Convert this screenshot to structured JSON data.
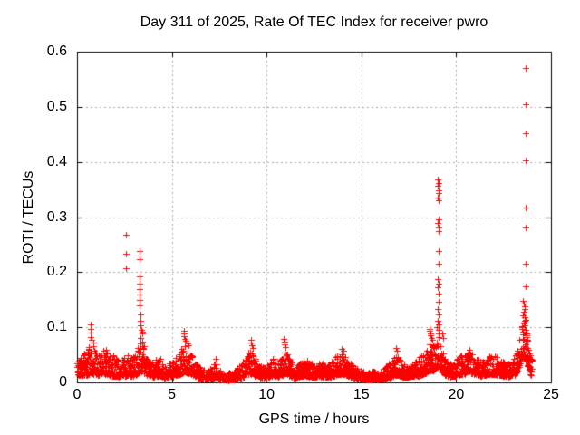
{
  "chart_data": {
    "type": "scatter",
    "title": "Day 311 of 2025, Rate Of TEC Index for receiver pwro",
    "xlabel": "GPS time / hours",
    "ylabel": "ROTI / TECUs",
    "series_name": "ROTI",
    "xlim": [
      0,
      25
    ],
    "ylim": [
      0,
      0.6
    ],
    "xticks": [
      0,
      5,
      10,
      15,
      20,
      25
    ],
    "xtick_labels": [
      "0",
      "5",
      "10",
      "15",
      "20",
      "25"
    ],
    "yticks": [
      0,
      0.1,
      0.2,
      0.3,
      0.4,
      0.5,
      0.6
    ],
    "ytick_labels": [
      "0",
      "0.1",
      "0.2",
      "0.3",
      "0.4",
      "0.5",
      "0.6"
    ],
    "grid": "dashed, at every major tick",
    "legend_position": "none",
    "marker": "plus",
    "marker_color": "#ff0000",
    "grid_color": "#aaaaaa",
    "axis_color": "#000000",
    "background_color": "#ffffff",
    "approx_points_total": 2640,
    "seed": 1311,
    "baseline_envelope_t_lo_hi": [
      [
        0.0,
        0.015,
        0.045
      ],
      [
        0.25,
        0.012,
        0.05
      ],
      [
        0.5,
        0.013,
        0.058
      ],
      [
        0.7,
        0.015,
        0.068
      ],
      [
        0.9,
        0.015,
        0.06
      ],
      [
        1.1,
        0.013,
        0.05
      ],
      [
        1.3,
        0.015,
        0.058
      ],
      [
        1.5,
        0.015,
        0.062
      ],
      [
        1.7,
        0.012,
        0.048
      ],
      [
        1.9,
        0.012,
        0.052
      ],
      [
        2.1,
        0.011,
        0.055
      ],
      [
        2.3,
        0.01,
        0.042
      ],
      [
        2.5,
        0.012,
        0.045
      ],
      [
        2.7,
        0.012,
        0.05
      ],
      [
        2.9,
        0.011,
        0.045
      ],
      [
        3.1,
        0.012,
        0.05
      ],
      [
        3.3,
        0.018,
        0.08
      ],
      [
        3.45,
        0.02,
        0.09
      ],
      [
        3.6,
        0.014,
        0.05
      ],
      [
        3.8,
        0.011,
        0.04
      ],
      [
        4.0,
        0.01,
        0.038
      ],
      [
        4.2,
        0.011,
        0.042
      ],
      [
        4.4,
        0.012,
        0.045
      ],
      [
        4.6,
        0.008,
        0.028
      ],
      [
        4.8,
        0.009,
        0.032
      ],
      [
        5.0,
        0.01,
        0.038
      ],
      [
        5.2,
        0.012,
        0.048
      ],
      [
        5.4,
        0.014,
        0.055
      ],
      [
        5.6,
        0.018,
        0.07
      ],
      [
        5.75,
        0.018,
        0.065
      ],
      [
        5.95,
        0.015,
        0.058
      ],
      [
        6.1,
        0.013,
        0.05
      ],
      [
        6.3,
        0.01,
        0.038
      ],
      [
        6.5,
        0.007,
        0.026
      ],
      [
        6.7,
        0.006,
        0.024
      ],
      [
        6.9,
        0.006,
        0.024
      ],
      [
        7.1,
        0.007,
        0.03
      ],
      [
        7.3,
        0.008,
        0.038
      ],
      [
        7.5,
        0.005,
        0.022
      ],
      [
        7.7,
        0.004,
        0.019
      ],
      [
        7.9,
        0.004,
        0.017
      ],
      [
        8.1,
        0.004,
        0.018
      ],
      [
        8.3,
        0.005,
        0.022
      ],
      [
        8.5,
        0.006,
        0.028
      ],
      [
        8.7,
        0.009,
        0.036
      ],
      [
        8.9,
        0.013,
        0.048
      ],
      [
        9.1,
        0.016,
        0.06
      ],
      [
        9.25,
        0.015,
        0.055
      ],
      [
        9.4,
        0.012,
        0.042
      ],
      [
        9.6,
        0.009,
        0.032
      ],
      [
        9.8,
        0.008,
        0.028
      ],
      [
        10.0,
        0.008,
        0.03
      ],
      [
        10.2,
        0.011,
        0.042
      ],
      [
        10.4,
        0.012,
        0.046
      ],
      [
        10.6,
        0.01,
        0.036
      ],
      [
        10.8,
        0.012,
        0.045
      ],
      [
        10.95,
        0.015,
        0.06
      ],
      [
        11.1,
        0.014,
        0.052
      ],
      [
        11.3,
        0.01,
        0.038
      ],
      [
        11.5,
        0.008,
        0.03
      ],
      [
        11.7,
        0.009,
        0.033
      ],
      [
        11.9,
        0.011,
        0.04
      ],
      [
        12.1,
        0.011,
        0.042
      ],
      [
        12.3,
        0.01,
        0.036
      ],
      [
        12.5,
        0.009,
        0.033
      ],
      [
        12.7,
        0.011,
        0.04
      ],
      [
        12.9,
        0.01,
        0.036
      ],
      [
        13.1,
        0.009,
        0.033
      ],
      [
        13.3,
        0.01,
        0.036
      ],
      [
        13.5,
        0.011,
        0.04
      ],
      [
        13.7,
        0.013,
        0.048
      ],
      [
        13.9,
        0.015,
        0.055
      ],
      [
        14.05,
        0.014,
        0.052
      ],
      [
        14.2,
        0.013,
        0.046
      ],
      [
        14.4,
        0.01,
        0.036
      ],
      [
        14.6,
        0.008,
        0.03
      ],
      [
        14.8,
        0.007,
        0.026
      ],
      [
        15.0,
        0.006,
        0.023
      ],
      [
        15.2,
        0.005,
        0.021
      ],
      [
        15.4,
        0.005,
        0.02
      ],
      [
        15.6,
        0.005,
        0.02
      ],
      [
        15.8,
        0.005,
        0.021
      ],
      [
        16.0,
        0.006,
        0.023
      ],
      [
        16.2,
        0.007,
        0.027
      ],
      [
        16.4,
        0.008,
        0.032
      ],
      [
        16.6,
        0.01,
        0.04
      ],
      [
        16.8,
        0.013,
        0.052
      ],
      [
        17.0,
        0.012,
        0.046
      ],
      [
        17.2,
        0.009,
        0.034
      ],
      [
        17.4,
        0.009,
        0.033
      ],
      [
        17.6,
        0.01,
        0.037
      ],
      [
        17.8,
        0.011,
        0.04
      ],
      [
        18.0,
        0.012,
        0.044
      ],
      [
        18.2,
        0.014,
        0.05
      ],
      [
        18.4,
        0.017,
        0.06
      ],
      [
        18.6,
        0.022,
        0.08
      ],
      [
        18.75,
        0.02,
        0.07
      ],
      [
        18.9,
        0.025,
        0.08
      ],
      [
        19.05,
        0.03,
        0.09
      ],
      [
        19.2,
        0.02,
        0.065
      ],
      [
        19.35,
        0.014,
        0.048
      ],
      [
        19.5,
        0.012,
        0.04
      ],
      [
        19.7,
        0.01,
        0.035
      ],
      [
        19.9,
        0.011,
        0.038
      ],
      [
        20.1,
        0.013,
        0.045
      ],
      [
        20.3,
        0.015,
        0.052
      ],
      [
        20.5,
        0.015,
        0.055
      ],
      [
        20.7,
        0.017,
        0.06
      ],
      [
        20.9,
        0.015,
        0.05
      ],
      [
        21.1,
        0.013,
        0.044
      ],
      [
        21.3,
        0.012,
        0.04
      ],
      [
        21.5,
        0.013,
        0.043
      ],
      [
        21.7,
        0.015,
        0.048
      ],
      [
        21.9,
        0.015,
        0.05
      ],
      [
        22.1,
        0.014,
        0.048
      ],
      [
        22.3,
        0.013,
        0.043
      ],
      [
        22.5,
        0.012,
        0.04
      ],
      [
        22.7,
        0.01,
        0.036
      ],
      [
        22.9,
        0.011,
        0.038
      ],
      [
        23.1,
        0.014,
        0.048
      ],
      [
        23.3,
        0.025,
        0.08
      ],
      [
        23.45,
        0.04,
        0.11
      ],
      [
        23.6,
        0.045,
        0.12
      ],
      [
        23.75,
        0.03,
        0.085
      ],
      [
        23.9,
        0.015,
        0.05
      ],
      [
        24.0,
        0.01,
        0.04
      ]
    ],
    "spike_points": [
      [
        0.72,
        0.105
      ],
      [
        0.72,
        0.097
      ],
      [
        0.73,
        0.09
      ],
      [
        0.74,
        0.083
      ],
      [
        0.76,
        0.077
      ],
      [
        0.86,
        0.072
      ],
      [
        0.87,
        0.066
      ],
      [
        2.58,
        0.268
      ],
      [
        2.58,
        0.233
      ],
      [
        2.6,
        0.207
      ],
      [
        3.29,
        0.238
      ],
      [
        3.29,
        0.223
      ],
      [
        3.3,
        0.192
      ],
      [
        3.3,
        0.18
      ],
      [
        3.31,
        0.17
      ],
      [
        3.31,
        0.16
      ],
      [
        3.32,
        0.15
      ],
      [
        3.32,
        0.14
      ],
      [
        3.33,
        0.124
      ],
      [
        3.33,
        0.112
      ],
      [
        3.34,
        0.103
      ],
      [
        3.38,
        0.096
      ],
      [
        3.42,
        0.092
      ],
      [
        3.46,
        0.088
      ],
      [
        5.62,
        0.094
      ],
      [
        5.64,
        0.089
      ],
      [
        5.66,
        0.084
      ],
      [
        5.69,
        0.079
      ],
      [
        5.73,
        0.075
      ],
      [
        5.82,
        0.071
      ],
      [
        5.88,
        0.068
      ],
      [
        7.32,
        0.042
      ],
      [
        9.18,
        0.077
      ],
      [
        9.2,
        0.072
      ],
      [
        9.23,
        0.067
      ],
      [
        9.27,
        0.063
      ],
      [
        10.92,
        0.079
      ],
      [
        10.94,
        0.074
      ],
      [
        10.96,
        0.069
      ],
      [
        11.0,
        0.064
      ],
      [
        13.98,
        0.061
      ],
      [
        14.03,
        0.058
      ],
      [
        16.84,
        0.062
      ],
      [
        16.87,
        0.058
      ],
      [
        18.58,
        0.097
      ],
      [
        18.6,
        0.093
      ],
      [
        18.63,
        0.089
      ],
      [
        18.66,
        0.085
      ],
      [
        18.69,
        0.081
      ],
      [
        18.72,
        0.077
      ],
      [
        19.04,
        0.368
      ],
      [
        19.05,
        0.362
      ],
      [
        19.04,
        0.356
      ],
      [
        19.06,
        0.349
      ],
      [
        19.05,
        0.343
      ],
      [
        19.04,
        0.336
      ],
      [
        19.06,
        0.33
      ],
      [
        19.05,
        0.296
      ],
      [
        19.04,
        0.289
      ],
      [
        19.06,
        0.281
      ],
      [
        19.05,
        0.274
      ],
      [
        19.05,
        0.238
      ],
      [
        19.06,
        0.215
      ],
      [
        19.04,
        0.188
      ],
      [
        19.05,
        0.18
      ],
      [
        19.04,
        0.172
      ],
      [
        19.06,
        0.161
      ],
      [
        19.05,
        0.146
      ],
      [
        19.04,
        0.133
      ],
      [
        19.05,
        0.123
      ],
      [
        19.03,
        0.112
      ],
      [
        19.06,
        0.106
      ],
      [
        19.0,
        0.1
      ],
      [
        19.08,
        0.096
      ],
      [
        19.25,
        0.088
      ],
      [
        19.3,
        0.08
      ],
      [
        23.64,
        0.571
      ],
      [
        23.65,
        0.505
      ],
      [
        23.66,
        0.452
      ],
      [
        23.65,
        0.402
      ],
      [
        23.66,
        0.317
      ],
      [
        23.65,
        0.281
      ],
      [
        23.66,
        0.215
      ],
      [
        23.64,
        0.174
      ],
      [
        23.5,
        0.148
      ],
      [
        23.55,
        0.143
      ],
      [
        23.6,
        0.138
      ],
      [
        23.63,
        0.133
      ],
      [
        23.57,
        0.128
      ],
      [
        23.52,
        0.122
      ],
      [
        23.6,
        0.118
      ],
      [
        23.64,
        0.113
      ],
      [
        23.55,
        0.108
      ],
      [
        23.62,
        0.104
      ],
      [
        23.48,
        0.1
      ],
      [
        23.68,
        0.096
      ],
      [
        23.7,
        0.09
      ],
      [
        23.72,
        0.082
      ],
      [
        23.75,
        0.075
      ]
    ]
  }
}
